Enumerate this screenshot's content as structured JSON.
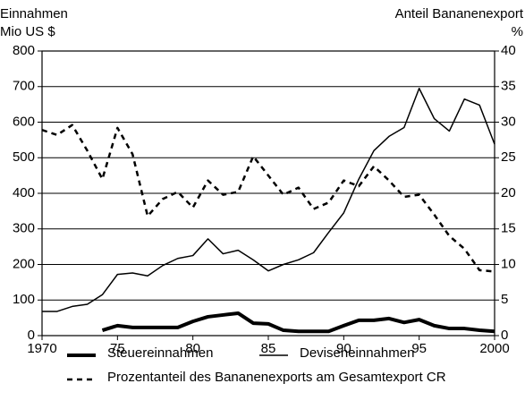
{
  "chart_data": {
    "type": "line",
    "y_label": [
      "Einnahmen",
      "Mio US $"
    ],
    "y2_label": [
      "Anteil Bananenexport",
      "%"
    ],
    "x": [
      1970,
      1971,
      1972,
      1973,
      1974,
      1975,
      1976,
      1977,
      1978,
      1979,
      1980,
      1981,
      1982,
      1983,
      1984,
      1985,
      1986,
      1987,
      1988,
      1989,
      1990,
      1991,
      1992,
      1993,
      1994,
      1995,
      1996,
      1997,
      1998,
      1999,
      2000
    ],
    "series": [
      {
        "name": "Steuereinnahmen",
        "color": "#000000",
        "line_width": 4,
        "line_style": "solid",
        "values": [
          null,
          null,
          null,
          null,
          15,
          28,
          23,
          23,
          23,
          23,
          40,
          53,
          58,
          63,
          35,
          33,
          15,
          12,
          12,
          12,
          28,
          43,
          43,
          48,
          37,
          45,
          28,
          20,
          20,
          15,
          12
        ]
      },
      {
        "name": "Deviseneinnahmen",
        "color": "#000000",
        "line_width": 1.5,
        "line_style": "solid",
        "values": [
          68,
          68,
          82,
          88,
          115,
          172,
          176,
          168,
          197,
          217,
          225,
          272,
          230,
          240,
          213,
          182,
          200,
          213,
          233,
          290,
          345,
          440,
          520,
          560,
          585,
          695,
          610,
          575,
          665,
          648,
          538
        ]
      },
      {
        "name": "Prozentanteil des Bananenexports am Gesamtexport CR",
        "color": "#000000",
        "line_width": 2.5,
        "line_style": "dashed",
        "axis": "y2",
        "values": [
          28.9,
          28.2,
          29.6,
          26,
          22,
          29.2,
          25.5,
          16.8,
          19.2,
          20.2,
          18,
          21.8,
          19.8,
          20.2,
          25.2,
          22.5,
          19.8,
          20.8,
          17.8,
          18.7,
          21.8,
          21,
          23.8,
          21.8,
          19.5,
          19.8,
          17,
          14,
          12.2,
          9.2,
          9
        ]
      }
    ],
    "xlim": [
      1970,
      2000
    ],
    "xticks": [
      1970,
      {
        "value": 1975,
        "label": "75"
      },
      {
        "value": 1980,
        "label": "80"
      },
      {
        "value": 1985,
        "label": "85"
      },
      {
        "value": 1990,
        "label": "90"
      },
      {
        "value": 1995,
        "label": "95"
      },
      2000
    ],
    "ylim": [
      0,
      800
    ],
    "yticks": [
      0,
      100,
      200,
      300,
      400,
      500,
      600,
      700,
      800
    ],
    "y2lim": [
      0,
      40
    ],
    "y2ticks": [
      0,
      5,
      10,
      15,
      20,
      25,
      30,
      35,
      40
    ],
    "grid": true
  }
}
